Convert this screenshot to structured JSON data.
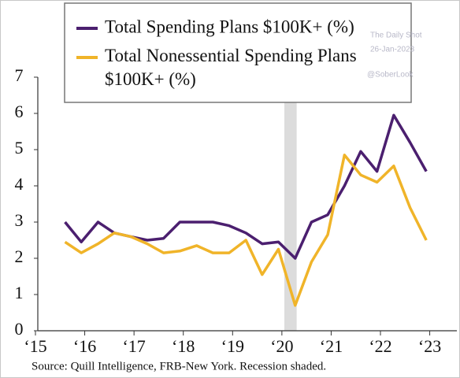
{
  "chart_data": {
    "type": "line",
    "watermark": [
      "The Daily Shot",
      "26-Jan-2023",
      "@SoberLook"
    ],
    "source": "Source: Quill Intelligence, FRB-New York. Recession shaded.",
    "x": [
      2015.6,
      2015.93,
      2016.27,
      2016.6,
      2016.93,
      2017.27,
      2017.6,
      2017.93,
      2018.27,
      2018.6,
      2018.93,
      2019.27,
      2019.6,
      2019.93,
      2020.27,
      2020.6,
      2020.93,
      2021.27,
      2021.6,
      2021.93,
      2022.27,
      2022.6,
      2022.93
    ],
    "series": [
      {
        "name": "Total Spending Plans $100K+ (%)",
        "color": "#4b1f6f",
        "values": [
          3.0,
          2.45,
          3.0,
          2.7,
          2.6,
          2.5,
          2.55,
          3.0,
          3.0,
          3.0,
          2.9,
          2.7,
          2.4,
          2.45,
          2.0,
          3.0,
          3.2,
          4.0,
          4.95,
          4.4,
          5.95,
          5.2,
          4.4
        ]
      },
      {
        "name": "Total Nonessential Spending Plans $100K+ (%)",
        "color": "#f0b429",
        "values": [
          2.45,
          2.15,
          2.4,
          2.7,
          2.6,
          2.4,
          2.15,
          2.2,
          2.35,
          2.15,
          2.15,
          2.5,
          1.55,
          2.25,
          0.7,
          1.9,
          2.65,
          4.85,
          4.3,
          4.1,
          4.55,
          3.4,
          2.5
        ]
      }
    ],
    "recession": [
      2020.05,
      2020.3
    ],
    "xlim": [
      2015,
      2023.55
    ],
    "xticks": [
      {
        "value": 2015,
        "label": "‘15"
      },
      {
        "value": 2016,
        "label": "‘16"
      },
      {
        "value": 2017,
        "label": "‘17"
      },
      {
        "value": 2018,
        "label": "‘18"
      },
      {
        "value": 2019,
        "label": "‘19"
      },
      {
        "value": 2020,
        "label": "‘20"
      },
      {
        "value": 2021,
        "label": "‘21"
      },
      {
        "value": 2022,
        "label": "‘22"
      },
      {
        "value": 2023,
        "label": "‘23"
      }
    ],
    "ylim": [
      0,
      7
    ],
    "yticks": [
      0,
      1,
      2,
      3,
      4,
      5,
      6,
      7
    ]
  }
}
